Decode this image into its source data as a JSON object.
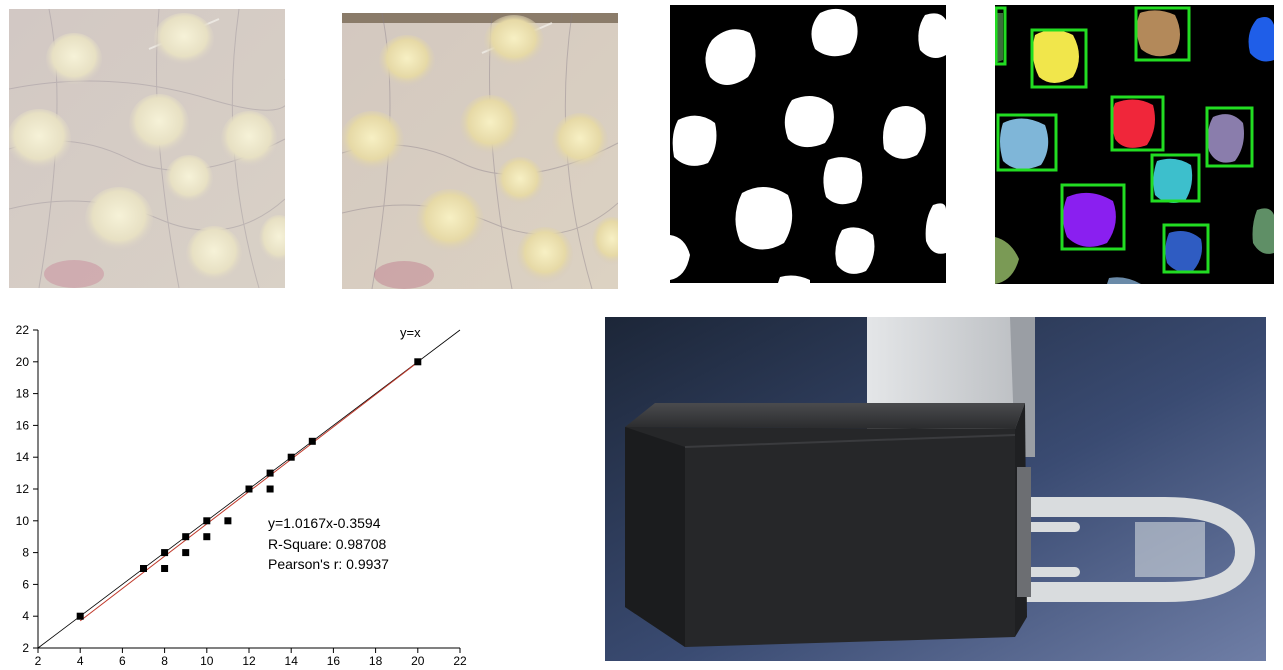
{
  "chart_data": {
    "type": "scatter",
    "title": "",
    "xlabel": "",
    "ylabel": "",
    "xlim": [
      2,
      22
    ],
    "ylim": [
      2,
      22
    ],
    "xticks": [
      2,
      4,
      6,
      8,
      10,
      12,
      14,
      16,
      18,
      20,
      22
    ],
    "yticks": [
      2,
      4,
      6,
      8,
      10,
      12,
      14,
      16,
      18,
      20,
      22
    ],
    "points": [
      {
        "x": 4,
        "y": 4
      },
      {
        "x": 7,
        "y": 7
      },
      {
        "x": 8,
        "y": 8
      },
      {
        "x": 8,
        "y": 7
      },
      {
        "x": 9,
        "y": 9
      },
      {
        "x": 9,
        "y": 8
      },
      {
        "x": 10,
        "y": 10
      },
      {
        "x": 10,
        "y": 9
      },
      {
        "x": 11,
        "y": 10
      },
      {
        "x": 12,
        "y": 12
      },
      {
        "x": 13,
        "y": 13
      },
      {
        "x": 13,
        "y": 12
      },
      {
        "x": 14,
        "y": 14
      },
      {
        "x": 15,
        "y": 15
      },
      {
        "x": 20,
        "y": 20
      }
    ],
    "reference_line": {
      "label": "y=x",
      "slope": 1,
      "intercept": 0,
      "color": "#000000"
    },
    "fit_line": {
      "slope": 1.0167,
      "intercept": -0.3594,
      "color": "#c0392b"
    },
    "annotations": [
      "y=1.0167x-0.3594",
      "R-Square: 0.98708",
      "Pearson's r: 0.9937"
    ],
    "grid": false
  },
  "colors": {
    "skin": "#d8cfc6",
    "bump": "#efe9c9",
    "bbox": "#22dd22",
    "blob_yellow": "#f1e64b",
    "blob_brown": "#b3895a",
    "blob_blue": "#1f5ee8",
    "blob_lightblue": "#7fb6d8",
    "blob_red": "#f0263a",
    "blob_lavender": "#8a7dac",
    "blob_cyan": "#3dbfcc",
    "blob_purple": "#8a1ff0",
    "blob_navy": "#2f5cc2",
    "blob_green": "#5f8f66",
    "blob_olive": "#7a9a55",
    "device_body": "#262729",
    "device_tube": "#d9dcde"
  }
}
